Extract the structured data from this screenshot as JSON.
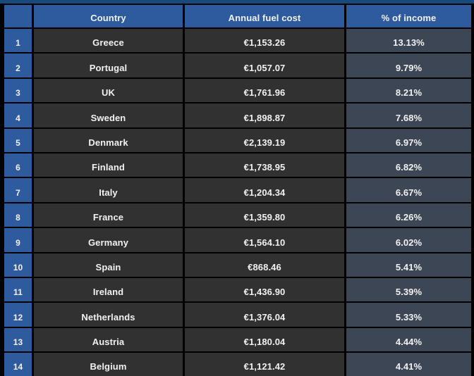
{
  "page": {
    "top_strip_color": "#17497a"
  },
  "table": {
    "header": {
      "rank": "",
      "country": "Country",
      "fuel": "Annual fuel cost",
      "income": "% of income"
    },
    "colors": {
      "header_bg": "#2e5b9e",
      "rank_bg": "#2e5b9e",
      "cell_bg": "#313131",
      "income_bg": "#3d4654",
      "border": "#000000",
      "text": "#f1f1f1"
    },
    "rows": [
      {
        "rank": "1",
        "country": "Greece",
        "fuel": "€1,153.26",
        "income": "13.13%"
      },
      {
        "rank": "2",
        "country": "Portugal",
        "fuel": "€1,057.07",
        "income": "9.79%"
      },
      {
        "rank": "3",
        "country": "UK",
        "fuel": "€1,761.96",
        "income": "8.21%"
      },
      {
        "rank": "4",
        "country": "Sweden",
        "fuel": "€1,898.87",
        "income": "7.68%"
      },
      {
        "rank": "5",
        "country": "Denmark",
        "fuel": "€2,139.19",
        "income": "6.97%"
      },
      {
        "rank": "6",
        "country": "Finland",
        "fuel": "€1,738.95",
        "income": "6.82%"
      },
      {
        "rank": "7",
        "country": "Italy",
        "fuel": "€1,204.34",
        "income": "6.67%"
      },
      {
        "rank": "8",
        "country": "France",
        "fuel": "€1,359.80",
        "income": "6.26%"
      },
      {
        "rank": "9",
        "country": "Germany",
        "fuel": "€1,564.10",
        "income": "6.02%"
      },
      {
        "rank": "10",
        "country": "Spain",
        "fuel": "€868.46",
        "income": "5.41%"
      },
      {
        "rank": "11",
        "country": "Ireland",
        "fuel": "€1,436.90",
        "income": "5.39%"
      },
      {
        "rank": "12",
        "country": "Netherlands",
        "fuel": "€1,376.04",
        "income": "5.33%"
      },
      {
        "rank": "13",
        "country": "Austria",
        "fuel": "€1,180.04",
        "income": "4.44%"
      },
      {
        "rank": "14",
        "country": "Belgium",
        "fuel": "€1,121.42",
        "income": "4.41%"
      }
    ]
  },
  "chart_data": {
    "type": "table",
    "title": "",
    "columns": [
      "",
      "Country",
      "Annual fuel cost",
      "% of income"
    ],
    "rows": [
      [
        "1",
        "Greece",
        "€1,153.26",
        "13.13%"
      ],
      [
        "2",
        "Portugal",
        "€1,057.07",
        "9.79%"
      ],
      [
        "3",
        "UK",
        "€1,761.96",
        "8.21%"
      ],
      [
        "4",
        "Sweden",
        "€1,898.87",
        "7.68%"
      ],
      [
        "5",
        "Denmark",
        "€2,139.19",
        "6.97%"
      ],
      [
        "6",
        "Finland",
        "€1,738.95",
        "6.82%"
      ],
      [
        "7",
        "Italy",
        "€1,204.34",
        "6.67%"
      ],
      [
        "8",
        "France",
        "€1,359.80",
        "6.26%"
      ],
      [
        "9",
        "Germany",
        "€1,564.10",
        "6.02%"
      ],
      [
        "10",
        "Spain",
        "€868.46",
        "5.41%"
      ],
      [
        "11",
        "Ireland",
        "€1,436.90",
        "5.39%"
      ],
      [
        "12",
        "Netherlands",
        "€1,376.04",
        "5.33%"
      ],
      [
        "13",
        "Austria",
        "€1,180.04",
        "4.44%"
      ],
      [
        "14",
        "Belgium",
        "€1,121.42",
        "4.41%"
      ]
    ]
  }
}
